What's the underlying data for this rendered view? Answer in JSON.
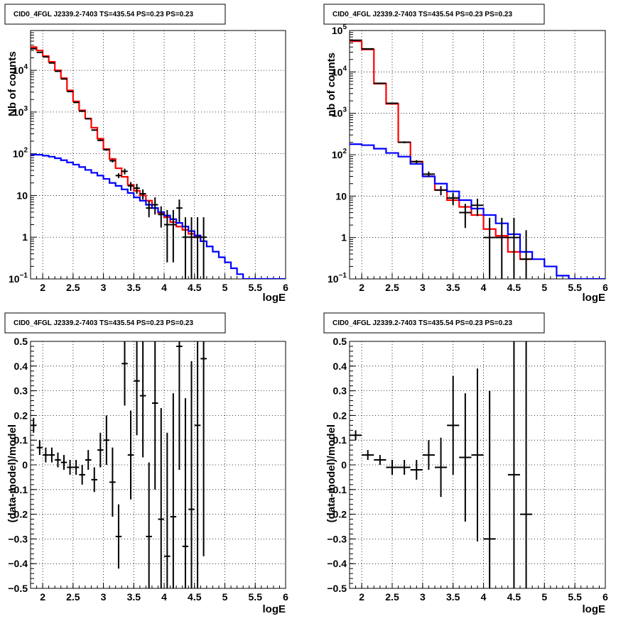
{
  "chart_data": [
    {
      "type": "line",
      "title": "CID0_4FGL J2339.2-7403 TS=435.54 PS=0.23 PS=0.23",
      "xlabel": "logE",
      "ylabel": "Nb of counts",
      "xlim": [
        1.8,
        6.0
      ],
      "ylim": [
        0.1,
        90000
      ],
      "log_y": true,
      "grid": true,
      "x_ticks": [
        "2",
        "2.5",
        "3",
        "3.5",
        "4",
        "4.5",
        "5",
        "5.5",
        "6"
      ],
      "y_ticks": [
        {
          "value": 0.1,
          "base": "10",
          "exp": "−1"
        },
        {
          "value": 1,
          "label": "1"
        },
        {
          "value": 10,
          "label": "10"
        },
        {
          "value": 100,
          "base": "10",
          "exp": "2"
        },
        {
          "value": 1000,
          "base": "10",
          "exp": "3"
        },
        {
          "value": 10000,
          "base": "10",
          "exp": "4"
        }
      ],
      "step_width": 0.1,
      "series": [
        {
          "color": "#ff0000",
          "style": "step",
          "x": [
            1.8,
            1.9,
            2.0,
            2.1,
            2.2,
            2.3,
            2.4,
            2.5,
            2.6,
            2.7,
            2.8,
            2.9,
            3.0,
            3.1,
            3.2,
            3.3,
            3.4,
            3.5,
            3.6,
            3.7,
            3.8,
            3.9,
            4.0,
            4.1,
            4.2,
            4.3,
            4.4,
            4.5,
            4.6
          ],
          "y": [
            36000,
            30000,
            22000,
            16000,
            10000,
            6500,
            3300,
            1800,
            1100,
            700,
            420,
            230,
            130,
            75,
            45,
            28,
            18,
            13,
            10,
            7.5,
            5,
            3.8,
            3,
            2.3,
            1.8,
            1.5,
            1.2,
            1,
            0.8
          ]
        },
        {
          "color": "#0000ff",
          "style": "step",
          "x": [
            1.8,
            1.9,
            2.0,
            2.1,
            2.2,
            2.3,
            2.4,
            2.5,
            2.6,
            2.7,
            2.8,
            2.9,
            3.0,
            3.1,
            3.2,
            3.3,
            3.4,
            3.5,
            3.6,
            3.7,
            3.8,
            3.9,
            4.0,
            4.1,
            4.2,
            4.3,
            4.4,
            4.5,
            4.6,
            4.7,
            4.8,
            4.9,
            5.0,
            5.1,
            5.2,
            5.3,
            5.4,
            5.5,
            5.6,
            5.7,
            5.8,
            5.9
          ],
          "y": [
            95,
            95,
            90,
            85,
            78,
            70,
            62,
            55,
            48,
            41,
            35,
            30,
            25,
            20,
            17,
            14,
            11.5,
            9,
            7.5,
            6,
            5,
            4,
            3.3,
            2.7,
            2.2,
            1.8,
            1.4,
            1.1,
            0.8,
            0.6,
            0.45,
            0.33,
            0.25,
            0.18,
            0.13,
            0.1,
            0.1,
            0.1,
            0.1,
            0.1,
            0.1,
            0.1
          ]
        },
        {
          "color": "#000000",
          "style": "errorbar",
          "x": [
            1.85,
            1.95,
            2.05,
            2.15,
            2.25,
            2.35,
            2.45,
            2.55,
            2.65,
            2.75,
            2.85,
            2.95,
            3.05,
            3.15,
            3.25,
            3.35,
            3.45,
            3.55,
            3.65,
            3.75,
            3.85,
            3.95,
            4.05,
            4.15,
            4.25,
            4.35,
            4.45,
            4.55,
            4.65
          ],
          "y": [
            33000,
            27000,
            21000,
            15000,
            9500,
            6200,
            3100,
            1700,
            1050,
            690,
            370,
            210,
            125,
            68,
            30,
            38,
            17,
            15,
            11,
            5,
            6,
            3.5,
            2,
            2,
            5,
            1,
            1,
            1,
            1
          ],
          "ylow": [
            32000,
            26500,
            20500,
            14700,
            9300,
            6100,
            3050,
            1650,
            1020,
            670,
            355,
            200,
            118,
            62,
            26,
            32,
            13,
            11,
            8,
            3,
            3.5,
            1.7,
            0.25,
            0.25,
            2.3,
            0.05,
            0.05,
            0.05,
            0.05
          ],
          "yhigh": [
            34000,
            27500,
            21500,
            15300,
            9700,
            6300,
            3150,
            1750,
            1080,
            710,
            385,
            220,
            132,
            74,
            34,
            44,
            21,
            19,
            14,
            7.5,
            9,
            5.5,
            4.5,
            4.5,
            8,
            3,
            3,
            3,
            3
          ]
        }
      ]
    },
    {
      "type": "line",
      "title": "CID0_4FGL J2339.2-7403 TS=435.54 PS=0.23 PS=0.23",
      "xlabel": "logE",
      "ylabel": "nb of counts",
      "xlim": [
        1.8,
        6.0
      ],
      "ylim": [
        0.1,
        100000
      ],
      "log_y": true,
      "grid": true,
      "x_ticks": [
        "2",
        "2.5",
        "3",
        "3.5",
        "4",
        "4.5",
        "5",
        "5.5",
        "6"
      ],
      "y_ticks": [
        {
          "value": 0.1,
          "base": "10",
          "exp": "−1"
        },
        {
          "value": 1,
          "label": "1"
        },
        {
          "value": 10,
          "label": "10"
        },
        {
          "value": 100,
          "base": "10",
          "exp": "2"
        },
        {
          "value": 1000,
          "base": "10",
          "exp": "3"
        },
        {
          "value": 10000,
          "base": "10",
          "exp": "4"
        },
        {
          "value": 100000,
          "base": "10",
          "exp": "5"
        }
      ],
      "step_width": 0.2,
      "series": [
        {
          "color": "#ff0000",
          "style": "step",
          "x": [
            1.8,
            2.0,
            2.2,
            2.4,
            2.6,
            2.8,
            3.0,
            3.2,
            3.4,
            3.6,
            3.8,
            4.0,
            4.2,
            4.4,
            4.6
          ],
          "y": [
            55000,
            35000,
            5200,
            1700,
            200,
            68,
            30,
            14,
            8,
            5.5,
            3.5,
            1.6,
            1.1,
            0.45,
            0.3
          ]
        },
        {
          "color": "#0000ff",
          "style": "step",
          "x": [
            1.8,
            2.0,
            2.2,
            2.4,
            2.6,
            2.8,
            3.0,
            3.2,
            3.4,
            3.6,
            3.8,
            4.0,
            4.2,
            4.4,
            4.6,
            4.8,
            5.0,
            5.2,
            5.4,
            5.6,
            5.8
          ],
          "y": [
            180,
            170,
            140,
            110,
            90,
            60,
            30,
            20,
            13,
            8,
            5,
            3.5,
            2.2,
            1.2,
            0.45,
            0.3,
            0.2,
            0.12,
            0.1,
            0.1,
            0.1
          ]
        },
        {
          "color": "#000000",
          "style": "errorbar",
          "x": [
            1.9,
            2.1,
            2.3,
            2.5,
            2.7,
            2.9,
            3.1,
            3.3,
            3.5,
            3.7,
            3.9,
            4.1,
            4.3,
            4.5,
            4.7
          ],
          "y": [
            58000,
            36000,
            5300,
            1750,
            200,
            68,
            34,
            14,
            9,
            4,
            6,
            1,
            1,
            1,
            0.3
          ],
          "ylow": [
            57000,
            35500,
            5150,
            1700,
            190,
            62,
            29,
            10.5,
            6,
            1.7,
            3.3,
            0.05,
            0.05,
            0.05,
            0.05
          ],
          "yhigh": [
            59000,
            36500,
            5450,
            1800,
            210,
            74,
            39,
            17.5,
            12,
            6.5,
            8.7,
            3,
            3,
            3,
            1.5
          ]
        }
      ]
    },
    {
      "type": "scatter",
      "title": "CID0_4FGL J2339.2-7403 TS=435.54 PS=0.23 PS=0.23",
      "xlabel": "logE",
      "ylabel": "(data-model)/model",
      "xlim": [
        1.8,
        6.0
      ],
      "ylim": [
        -0.5,
        0.5
      ],
      "grid": true,
      "x_ticks": [
        "2",
        "2.5",
        "3",
        "3.5",
        "4",
        "4.5",
        "5",
        "5.5",
        "6"
      ],
      "y_ticks": [
        "−0.5",
        "−0.4",
        "−0.3",
        "−0.2",
        "−0.1",
        "0",
        "0.1",
        "0.2",
        "0.3",
        "0.4",
        "0.5"
      ],
      "step_width": 0.1,
      "series": [
        {
          "color": "#000000",
          "style": "errorbar",
          "x": [
            1.85,
            1.95,
            2.05,
            2.15,
            2.25,
            2.35,
            2.45,
            2.55,
            2.65,
            2.75,
            2.85,
            2.95,
            3.05,
            3.15,
            3.25,
            3.35,
            3.45,
            3.55,
            3.65,
            3.75,
            3.85,
            3.95,
            4.05,
            4.15,
            4.25,
            4.35,
            4.45,
            4.55,
            4.65
          ],
          "y": [
            0.16,
            0.07,
            0.04,
            0.04,
            0.02,
            0.01,
            -0.01,
            -0.01,
            -0.04,
            0.02,
            -0.06,
            0.06,
            0.1,
            -0.07,
            -0.29,
            0.41,
            0.04,
            0.34,
            0.28,
            -0.29,
            0.25,
            -0.22,
            -0.37,
            -0.21,
            0.48,
            -0.33,
            -0.18,
            0.16,
            0.43
          ],
          "err": [
            0.03,
            0.03,
            0.03,
            0.03,
            0.03,
            0.03,
            0.03,
            0.03,
            0.04,
            0.04,
            0.05,
            0.07,
            0.1,
            0.14,
            0.13,
            0.17,
            0.18,
            0.22,
            0.25,
            0.3,
            0.35,
            0.45,
            0.5,
            0.5,
            0.5,
            0.6,
            0.6,
            0.7,
            0.8
          ]
        }
      ]
    },
    {
      "type": "scatter",
      "title": "CID0_4FGL J2339.2-7403 TS=435.54 PS=0.23 PS=0.23",
      "xlabel": "logE",
      "ylabel": "(data-model)/model",
      "xlim": [
        1.8,
        6.0
      ],
      "ylim": [
        -0.5,
        0.5
      ],
      "grid": true,
      "x_ticks": [
        "2",
        "2.5",
        "3",
        "3.5",
        "4",
        "4.5",
        "5",
        "5.5",
        "6"
      ],
      "y_ticks": [
        "−0.5",
        "−0.4",
        "−0.3",
        "−0.2",
        "−0.1",
        "0",
        "0.1",
        "0.2",
        "0.3",
        "0.4",
        "0.5"
      ],
      "step_width": 0.2,
      "series": [
        {
          "color": "#000000",
          "style": "errorbar",
          "x": [
            1.9,
            2.1,
            2.3,
            2.5,
            2.7,
            2.9,
            3.1,
            3.3,
            3.5,
            3.7,
            3.9,
            4.1,
            4.5,
            4.7
          ],
          "y": [
            0.12,
            0.04,
            0.02,
            -0.01,
            -0.01,
            -0.02,
            0.04,
            -0.01,
            0.16,
            0.03,
            0.04,
            -0.3,
            -0.04,
            -0.2
          ],
          "err": [
            0.02,
            0.02,
            0.02,
            0.03,
            0.03,
            0.04,
            0.06,
            0.12,
            0.2,
            0.26,
            0.35,
            0.6,
            0.8,
            0.8
          ]
        }
      ]
    }
  ]
}
